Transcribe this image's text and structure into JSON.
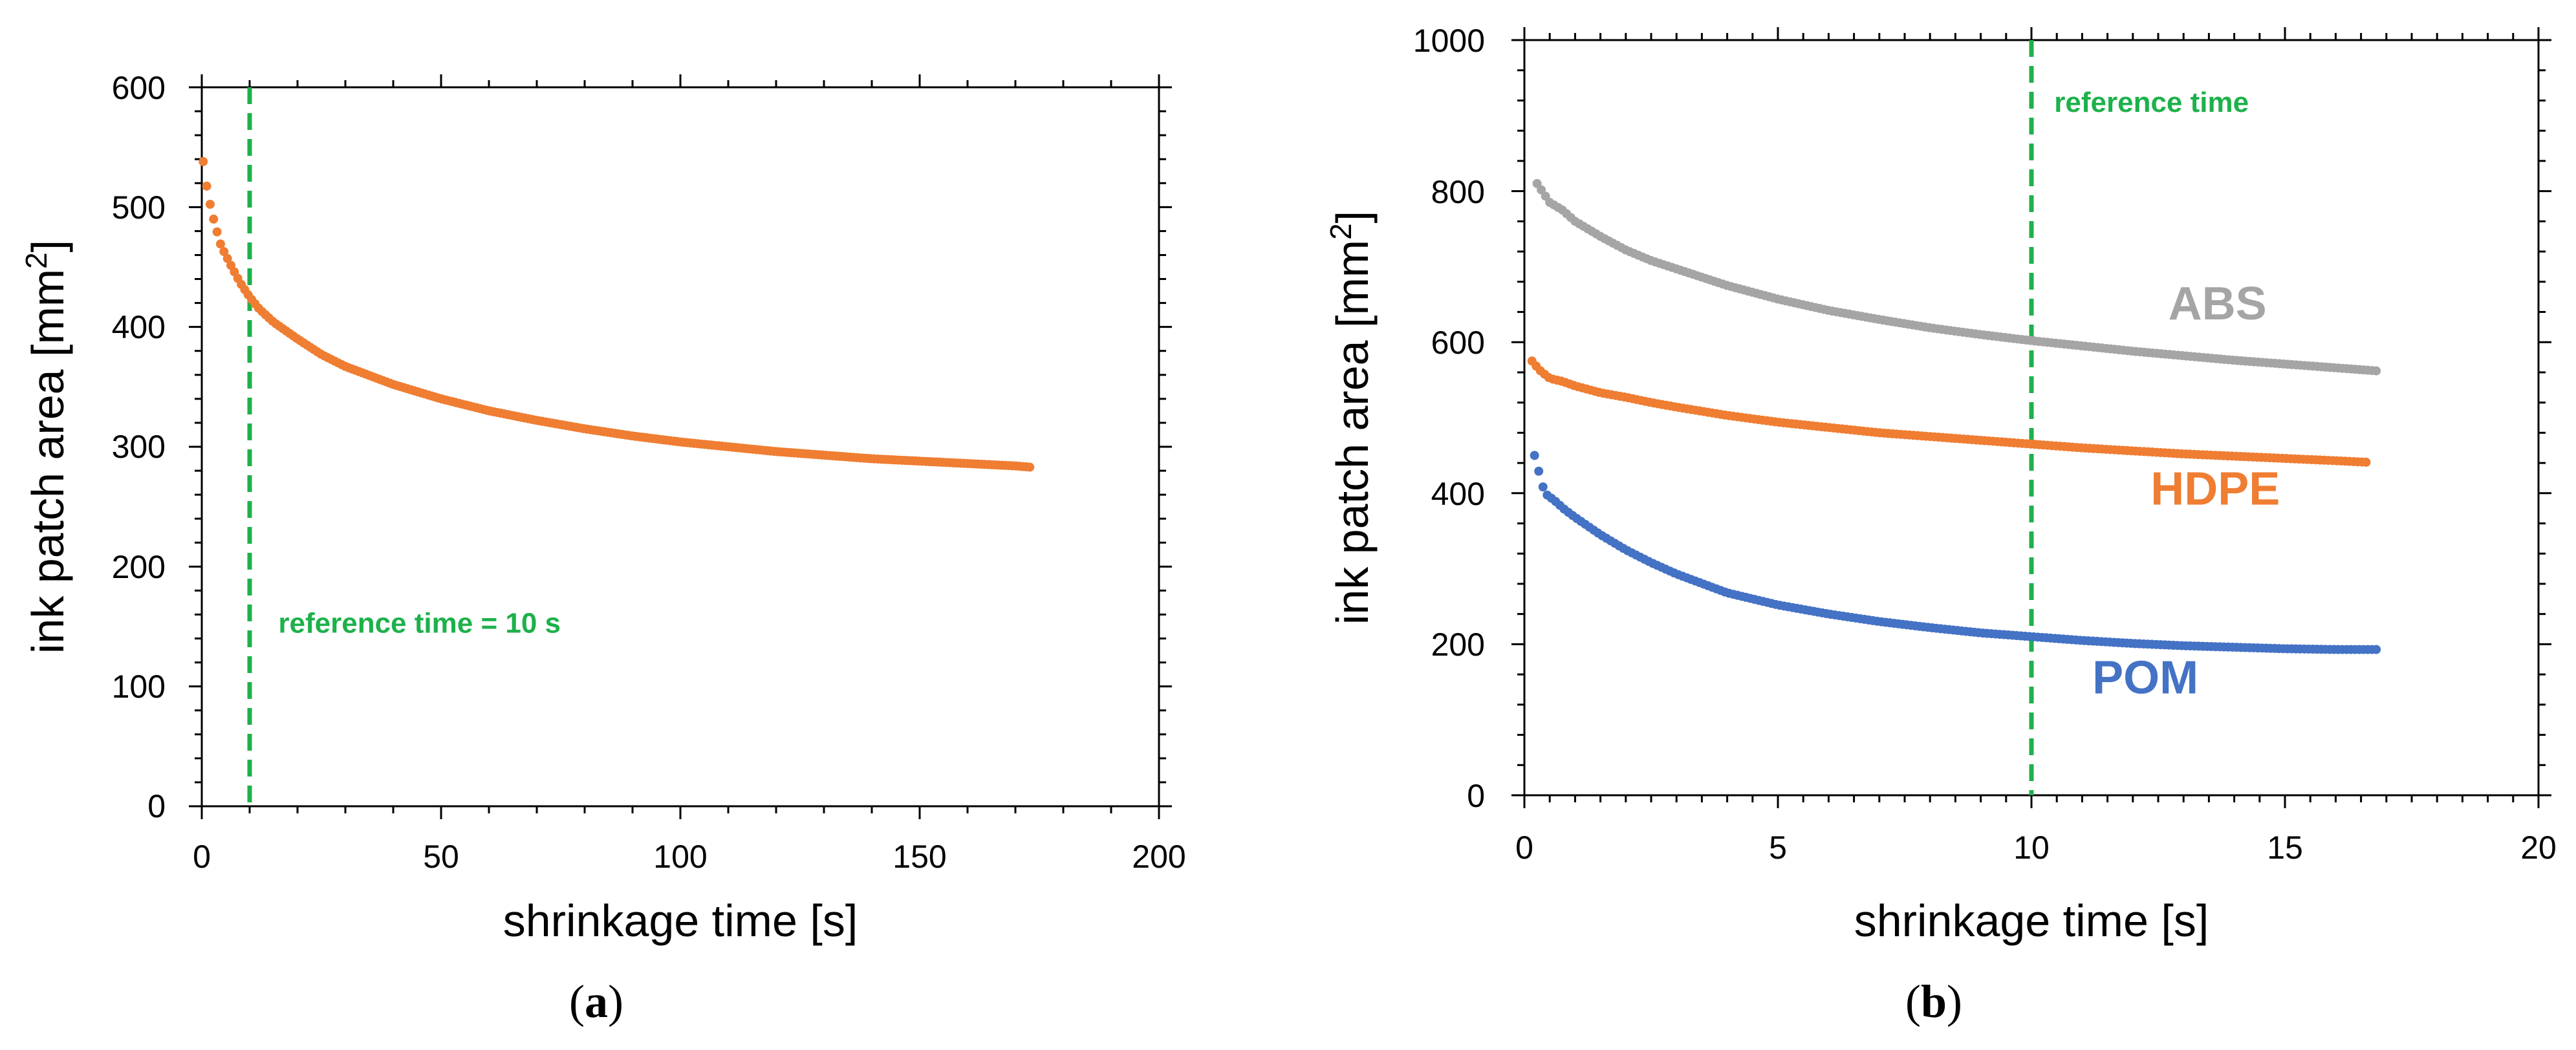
{
  "chart_data": [
    {
      "type": "scatter",
      "panel_label": "(a)",
      "xlabel": "shrinkage time [s]",
      "ylabel_main": "ink patch area [mm",
      "ylabel_sup": "2",
      "ylabel_close": "]",
      "xlim": [
        0,
        200
      ],
      "ylim": [
        0,
        600
      ],
      "x_major_ticks": [
        0,
        50,
        100,
        150,
        200
      ],
      "y_major_ticks": [
        0,
        100,
        200,
        300,
        400,
        500,
        600
      ],
      "x_tick_labels": [
        "0",
        "50",
        "100",
        "150",
        "200"
      ],
      "y_tick_labels": [
        "0",
        "100",
        "200",
        "300",
        "400",
        "500",
        "600"
      ],
      "x_minor_step": 10,
      "y_minor_step": 20,
      "reference_line": {
        "x": 10,
        "color": "#1db14a",
        "label": "reference time = 10 s",
        "label_at": [
          16,
          145
        ]
      },
      "series": [
        {
          "name": "",
          "color": "#ef7d32",
          "x": [
            0.3,
            1,
            2,
            3,
            4,
            6,
            8,
            10,
            12,
            15,
            20,
            25,
            30,
            40,
            50,
            60,
            70,
            80,
            90,
            100,
            110,
            120,
            130,
            140,
            150,
            160,
            170,
            173
          ],
          "y": [
            538,
            518,
            497,
            482,
            468,
            452,
            437,
            425,
            415,
            404,
            390,
            377,
            367,
            352,
            340,
            330,
            322,
            315,
            309,
            304,
            300,
            296,
            293,
            290,
            288,
            286,
            284,
            283
          ]
        }
      ]
    },
    {
      "type": "scatter",
      "panel_label": "(b)",
      "xlabel": "shrinkage time [s]",
      "ylabel_main": "ink patch area [mm",
      "ylabel_sup": "2",
      "ylabel_close": "]",
      "xlim": [
        0,
        20
      ],
      "ylim": [
        0,
        1000
      ],
      "x_major_ticks": [
        0,
        5,
        10,
        15,
        20
      ],
      "y_major_ticks": [
        0,
        200,
        400,
        600,
        800,
        1000
      ],
      "x_tick_labels": [
        "0",
        "5",
        "10",
        "15",
        "20"
      ],
      "y_tick_labels": [
        "0",
        "200",
        "400",
        "600",
        "800",
        "1000"
      ],
      "x_minor_step": 0.5,
      "y_minor_step": 40,
      "reference_line": {
        "x": 10,
        "color": "#1db14a",
        "label": "reference time",
        "label_at": [
          10.45,
          905
        ]
      },
      "series": [
        {
          "name": "ABS",
          "color": "#a5a5a5",
          "label_at": [
            12.7,
            630
          ],
          "x": [
            0.25,
            0.35,
            0.5,
            0.75,
            1,
            1.5,
            2,
            2.5,
            3,
            4,
            5,
            6,
            7,
            8,
            9,
            10,
            11,
            12,
            13,
            14,
            15,
            16,
            16.8
          ],
          "y": [
            810,
            800,
            785,
            775,
            760,
            740,
            722,
            708,
            697,
            675,
            657,
            642,
            630,
            619,
            610,
            602,
            595,
            588,
            582,
            576,
            571,
            566,
            562
          ]
        },
        {
          "name": "HDPE",
          "color": "#ef7d32",
          "label_at": [
            12.35,
            385
          ],
          "x": [
            0.15,
            0.3,
            0.5,
            0.75,
            1,
            1.5,
            2,
            2.5,
            3,
            4,
            5,
            6,
            7,
            8,
            9,
            10,
            11,
            12,
            13,
            14,
            15,
            16,
            16.6
          ],
          "y": [
            575,
            563,
            552,
            548,
            542,
            533,
            527,
            520,
            514,
            503,
            494,
            487,
            480,
            475,
            470,
            465,
            460,
            456,
            452,
            449,
            446,
            443,
            441
          ]
        },
        {
          "name": "POM",
          "color": "#4472c4",
          "label_at": [
            11.2,
            135
          ],
          "x": [
            0.2,
            0.3,
            0.4,
            0.6,
            0.8,
            1,
            1.5,
            2,
            2.5,
            3,
            4,
            5,
            6,
            7,
            8,
            9,
            10,
            11,
            12,
            13,
            14,
            15,
            16,
            16.8
          ],
          "y": [
            450,
            425,
            400,
            390,
            378,
            368,
            345,
            325,
            308,
            293,
            268,
            252,
            240,
            230,
            222,
            215,
            210,
            205,
            201,
            198,
            196,
            194,
            193,
            193
          ]
        }
      ]
    }
  ]
}
